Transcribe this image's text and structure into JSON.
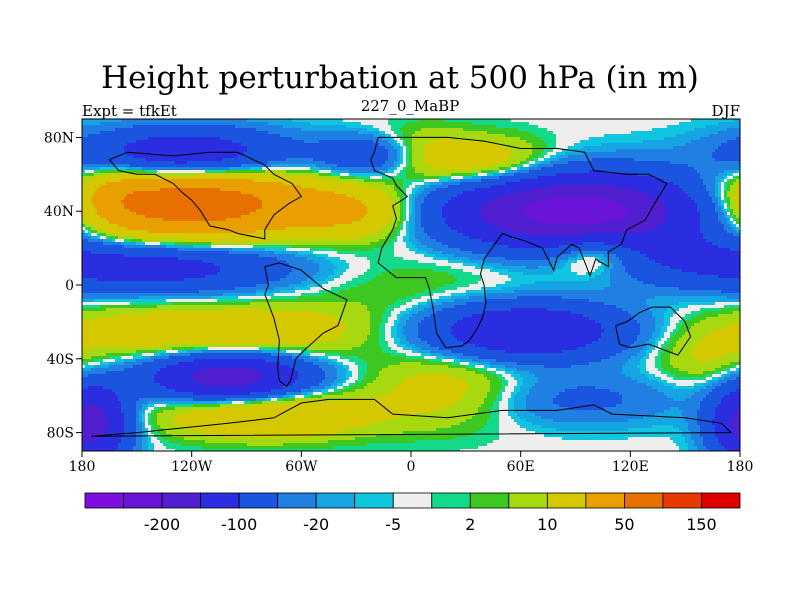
{
  "chart_data": {
    "type": "heatmap",
    "title": "Height perturbation at 500 hPa (in m)",
    "subtitle_left": "Expt = tfkEt",
    "subtitle_center": "227_0_MaBP",
    "subtitle_right": "DJF",
    "xlim": [
      -180,
      180
    ],
    "ylim": [
      -90,
      90
    ],
    "x_ticks": [
      {
        "value": -180,
        "label": "180"
      },
      {
        "value": -120,
        "label": "120W"
      },
      {
        "value": -60,
        "label": "60W"
      },
      {
        "value": 0,
        "label": "0"
      },
      {
        "value": 60,
        "label": "60E"
      },
      {
        "value": 120,
        "label": "120E"
      },
      {
        "value": 180,
        "label": "180"
      }
    ],
    "y_ticks": [
      {
        "value": 80,
        "label": "80N"
      },
      {
        "value": 40,
        "label": "40N"
      },
      {
        "value": 0,
        "label": "0"
      },
      {
        "value": -40,
        "label": "40S"
      },
      {
        "value": -80,
        "label": "80S"
      }
    ],
    "colorbar": {
      "colors": [
        "#7a0fe0",
        "#6a14d8",
        "#4f1fd0",
        "#2a2ee0",
        "#1a55e0",
        "#1f7fe3",
        "#15a5e2",
        "#10c5e0",
        "#eeeeee",
        "#14d88a",
        "#3cc820",
        "#a8d810",
        "#d4c800",
        "#e8a000",
        "#e87000",
        "#e83a00",
        "#e00000"
      ],
      "labels": [
        {
          "after_box": 1,
          "label": "-200"
        },
        {
          "after_box": 3,
          "label": "-100"
        },
        {
          "after_box": 5,
          "label": "-20"
        },
        {
          "after_box": 7,
          "label": "-5"
        },
        {
          "after_box": 9,
          "label": "2"
        },
        {
          "after_box": 11,
          "label": "10"
        },
        {
          "after_box": 13,
          "label": "50"
        },
        {
          "after_box": 15,
          "label": "150"
        }
      ]
    },
    "field_centers": [
      {
        "lon": -120,
        "lat": 45,
        "value": 140,
        "sx": 45,
        "sy": 14
      },
      {
        "lon": -125,
        "lat": 70,
        "value": -100,
        "sx": 40,
        "sy": 10
      },
      {
        "lon": -20,
        "lat": 70,
        "value": -60,
        "sx": 20,
        "sy": 8
      },
      {
        "lon": -30,
        "lat": 40,
        "value": 50,
        "sx": 25,
        "sy": 10
      },
      {
        "lon": 0,
        "lat": 70,
        "value": 40,
        "sx": 22,
        "sy": 10
      },
      {
        "lon": 90,
        "lat": 40,
        "value": -180,
        "sx": 50,
        "sy": 14
      },
      {
        "lon": 45,
        "lat": 65,
        "value": 40,
        "sx": 25,
        "sy": 10
      },
      {
        "lon": 100,
        "lat": 18,
        "value": 45,
        "sx": 16,
        "sy": 8
      },
      {
        "lon": -140,
        "lat": 10,
        "value": -70,
        "sx": 55,
        "sy": 10
      },
      {
        "lon": 150,
        "lat": 15,
        "value": -20,
        "sx": 30,
        "sy": 10
      },
      {
        "lon": 0,
        "lat": 0,
        "value": 12,
        "sx": 50,
        "sy": 20
      },
      {
        "lon": -110,
        "lat": -25,
        "value": 45,
        "sx": 60,
        "sy": 10
      },
      {
        "lon": 60,
        "lat": -25,
        "value": -100,
        "sx": 40,
        "sy": 11
      },
      {
        "lon": -100,
        "lat": -50,
        "value": -130,
        "sx": 30,
        "sy": 9
      },
      {
        "lon": -80,
        "lat": -70,
        "value": 55,
        "sx": 40,
        "sy": 9
      },
      {
        "lon": 20,
        "lat": -55,
        "value": 30,
        "sx": 30,
        "sy": 15
      },
      {
        "lon": 90,
        "lat": -62,
        "value": -25,
        "sx": 40,
        "sy": 10
      },
      {
        "lon": 160,
        "lat": -40,
        "value": 20,
        "sx": 20,
        "sy": 10
      },
      {
        "lon": -175,
        "lat": -75,
        "value": -130,
        "sx": 14,
        "sy": 14
      },
      {
        "lon": -160,
        "lat": 50,
        "value": 20,
        "sx": 15,
        "sy": 15
      }
    ]
  }
}
